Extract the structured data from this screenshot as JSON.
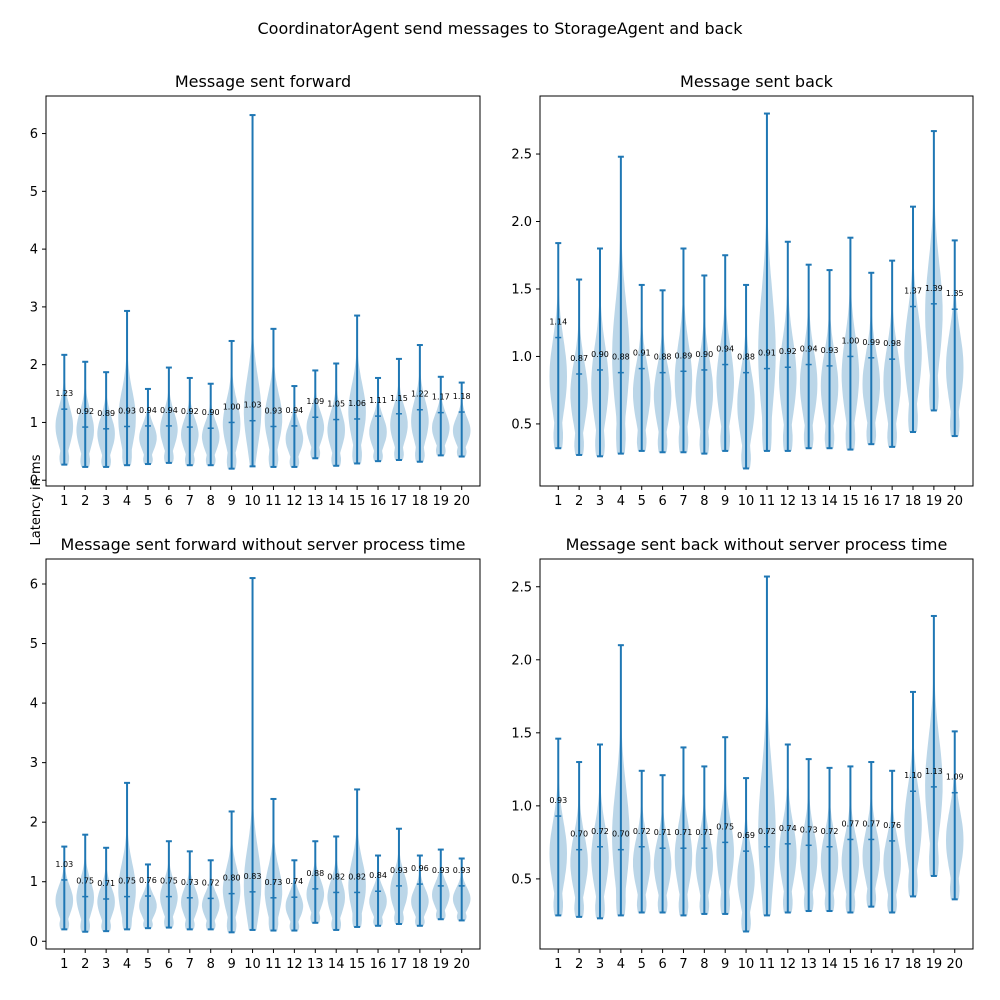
{
  "figure": {
    "suptitle": "CoordinatorAgent send messages to StorageAgent and back",
    "ylabel": "Latency in ms"
  },
  "chart_data": [
    {
      "type": "violin",
      "title": "Message sent forward",
      "categories": [
        "1",
        "2",
        "3",
        "4",
        "5",
        "6",
        "7",
        "8",
        "9",
        "10",
        "11",
        "12",
        "13",
        "14",
        "15",
        "16",
        "17",
        "18",
        "19",
        "20"
      ],
      "ylim": [
        -0.1,
        6.65
      ],
      "yticks": [
        0,
        1,
        2,
        3,
        4,
        5,
        6
      ],
      "mean": [
        1.23,
        0.92,
        0.89,
        0.93,
        0.94,
        0.94,
        0.92,
        0.9,
        1.0,
        1.03,
        0.93,
        0.94,
        1.09,
        1.05,
        1.06,
        1.11,
        1.15,
        1.22,
        1.17,
        1.18
      ],
      "min": [
        0.27,
        0.23,
        0.23,
        0.26,
        0.28,
        0.3,
        0.26,
        0.26,
        0.2,
        0.24,
        0.23,
        0.23,
        0.38,
        0.25,
        0.29,
        0.33,
        0.35,
        0.32,
        0.43,
        0.41
      ],
      "max": [
        2.17,
        2.05,
        1.87,
        2.93,
        1.58,
        1.95,
        1.77,
        1.67,
        2.41,
        6.32,
        2.62,
        1.63,
        1.9,
        2.02,
        2.85,
        1.77,
        2.1,
        2.34,
        1.79,
        1.69
      ],
      "mean_labels": [
        "1.23",
        "0.92",
        "0.89",
        "0.93",
        "0.94",
        "0.94",
        "0.92",
        "0.90",
        "1.00",
        "1.03",
        "0.93",
        "0.94",
        "1.09",
        "1.05",
        "1.06",
        "1.11",
        "1.15",
        "1.22",
        "1.17",
        "1.18"
      ]
    },
    {
      "type": "violin",
      "title": "Message sent back",
      "categories": [
        "1",
        "2",
        "3",
        "4",
        "5",
        "6",
        "7",
        "8",
        "9",
        "10",
        "11",
        "12",
        "13",
        "14",
        "15",
        "16",
        "17",
        "18",
        "19",
        "20"
      ],
      "ylim": [
        0.04,
        2.93
      ],
      "yticks": [
        0.5,
        1.0,
        1.5,
        2.0,
        2.5
      ],
      "mean": [
        1.14,
        0.87,
        0.9,
        0.88,
        0.91,
        0.88,
        0.89,
        0.9,
        0.94,
        0.88,
        0.91,
        0.92,
        0.94,
        0.93,
        1.0,
        0.99,
        0.98,
        1.37,
        1.39,
        1.35
      ],
      "min": [
        0.32,
        0.27,
        0.26,
        0.28,
        0.3,
        0.29,
        0.29,
        0.28,
        0.3,
        0.17,
        0.3,
        0.3,
        0.32,
        0.32,
        0.31,
        0.35,
        0.33,
        0.44,
        0.6,
        0.41
      ],
      "max": [
        1.84,
        1.57,
        1.8,
        2.48,
        1.53,
        1.49,
        1.8,
        1.6,
        1.75,
        1.53,
        2.8,
        1.85,
        1.68,
        1.64,
        1.88,
        1.62,
        1.71,
        2.11,
        2.67,
        1.86
      ],
      "mean_labels": [
        "1.14",
        "0.87",
        "0.90",
        "0.88",
        "0.91",
        "0.88",
        "0.89",
        "0.90",
        "0.94",
        "0.88",
        "0.91",
        "0.92",
        "0.94",
        "0.93",
        "1.00",
        "0.99",
        "0.98",
        "1.37",
        "1.39",
        "1.35"
      ]
    },
    {
      "type": "violin",
      "title": "Message sent forward without server process time",
      "categories": [
        "1",
        "2",
        "3",
        "4",
        "5",
        "6",
        "7",
        "8",
        "9",
        "10",
        "11",
        "12",
        "13",
        "14",
        "15",
        "16",
        "17",
        "18",
        "19",
        "20"
      ],
      "ylim": [
        -0.13,
        6.42
      ],
      "yticks": [
        0,
        1,
        2,
        3,
        4,
        5,
        6
      ],
      "mean": [
        1.03,
        0.75,
        0.71,
        0.75,
        0.76,
        0.75,
        0.73,
        0.72,
        0.8,
        0.83,
        0.73,
        0.74,
        0.88,
        0.82,
        0.82,
        0.84,
        0.93,
        0.96,
        0.93,
        0.93
      ],
      "min": [
        0.2,
        0.16,
        0.17,
        0.2,
        0.22,
        0.23,
        0.2,
        0.2,
        0.15,
        0.19,
        0.18,
        0.18,
        0.31,
        0.19,
        0.24,
        0.26,
        0.29,
        0.26,
        0.37,
        0.35
      ],
      "max": [
        1.59,
        1.79,
        1.57,
        2.66,
        1.29,
        1.68,
        1.51,
        1.36,
        2.18,
        6.1,
        2.39,
        1.36,
        1.68,
        1.76,
        2.55,
        1.44,
        1.89,
        1.44,
        1.54,
        1.39
      ],
      "mean_labels": [
        "1.03",
        "0.75",
        "0.71",
        "0.75",
        "0.76",
        "0.75",
        "0.73",
        "0.72",
        "0.80",
        "0.83",
        "0.73",
        "0.74",
        "0.88",
        "0.82",
        "0.82",
        "0.84",
        "0.93",
        "0.96",
        "0.93",
        "0.93"
      ]
    },
    {
      "type": "violin",
      "title": "Message sent back without server process time",
      "categories": [
        "1",
        "2",
        "3",
        "4",
        "5",
        "6",
        "7",
        "8",
        "9",
        "10",
        "11",
        "12",
        "13",
        "14",
        "15",
        "16",
        "17",
        "18",
        "19",
        "20"
      ],
      "ylim": [
        0.02,
        2.69
      ],
      "yticks": [
        0.5,
        1.0,
        1.5,
        2.0,
        2.5
      ],
      "mean": [
        0.93,
        0.7,
        0.72,
        0.7,
        0.72,
        0.71,
        0.71,
        0.71,
        0.75,
        0.69,
        0.72,
        0.74,
        0.73,
        0.72,
        0.77,
        0.77,
        0.76,
        1.1,
        1.13,
        1.09
      ],
      "min": [
        0.25,
        0.24,
        0.23,
        0.25,
        0.27,
        0.27,
        0.25,
        0.26,
        0.26,
        0.14,
        0.25,
        0.27,
        0.28,
        0.28,
        0.27,
        0.31,
        0.27,
        0.38,
        0.52,
        0.36
      ],
      "max": [
        1.46,
        1.3,
        1.42,
        2.1,
        1.24,
        1.21,
        1.4,
        1.27,
        1.47,
        1.19,
        2.57,
        1.42,
        1.32,
        1.26,
        1.27,
        1.3,
        1.24,
        1.78,
        2.3,
        1.51
      ],
      "mean_labels": [
        "0.93",
        "0.70",
        "0.72",
        "0.70",
        "0.72",
        "0.71",
        "0.71",
        "0.71",
        "0.75",
        "0.69",
        "0.72",
        "0.74",
        "0.73",
        "0.72",
        "0.77",
        "0.77",
        "0.76",
        "1.10",
        "1.13",
        "1.09"
      ]
    }
  ]
}
